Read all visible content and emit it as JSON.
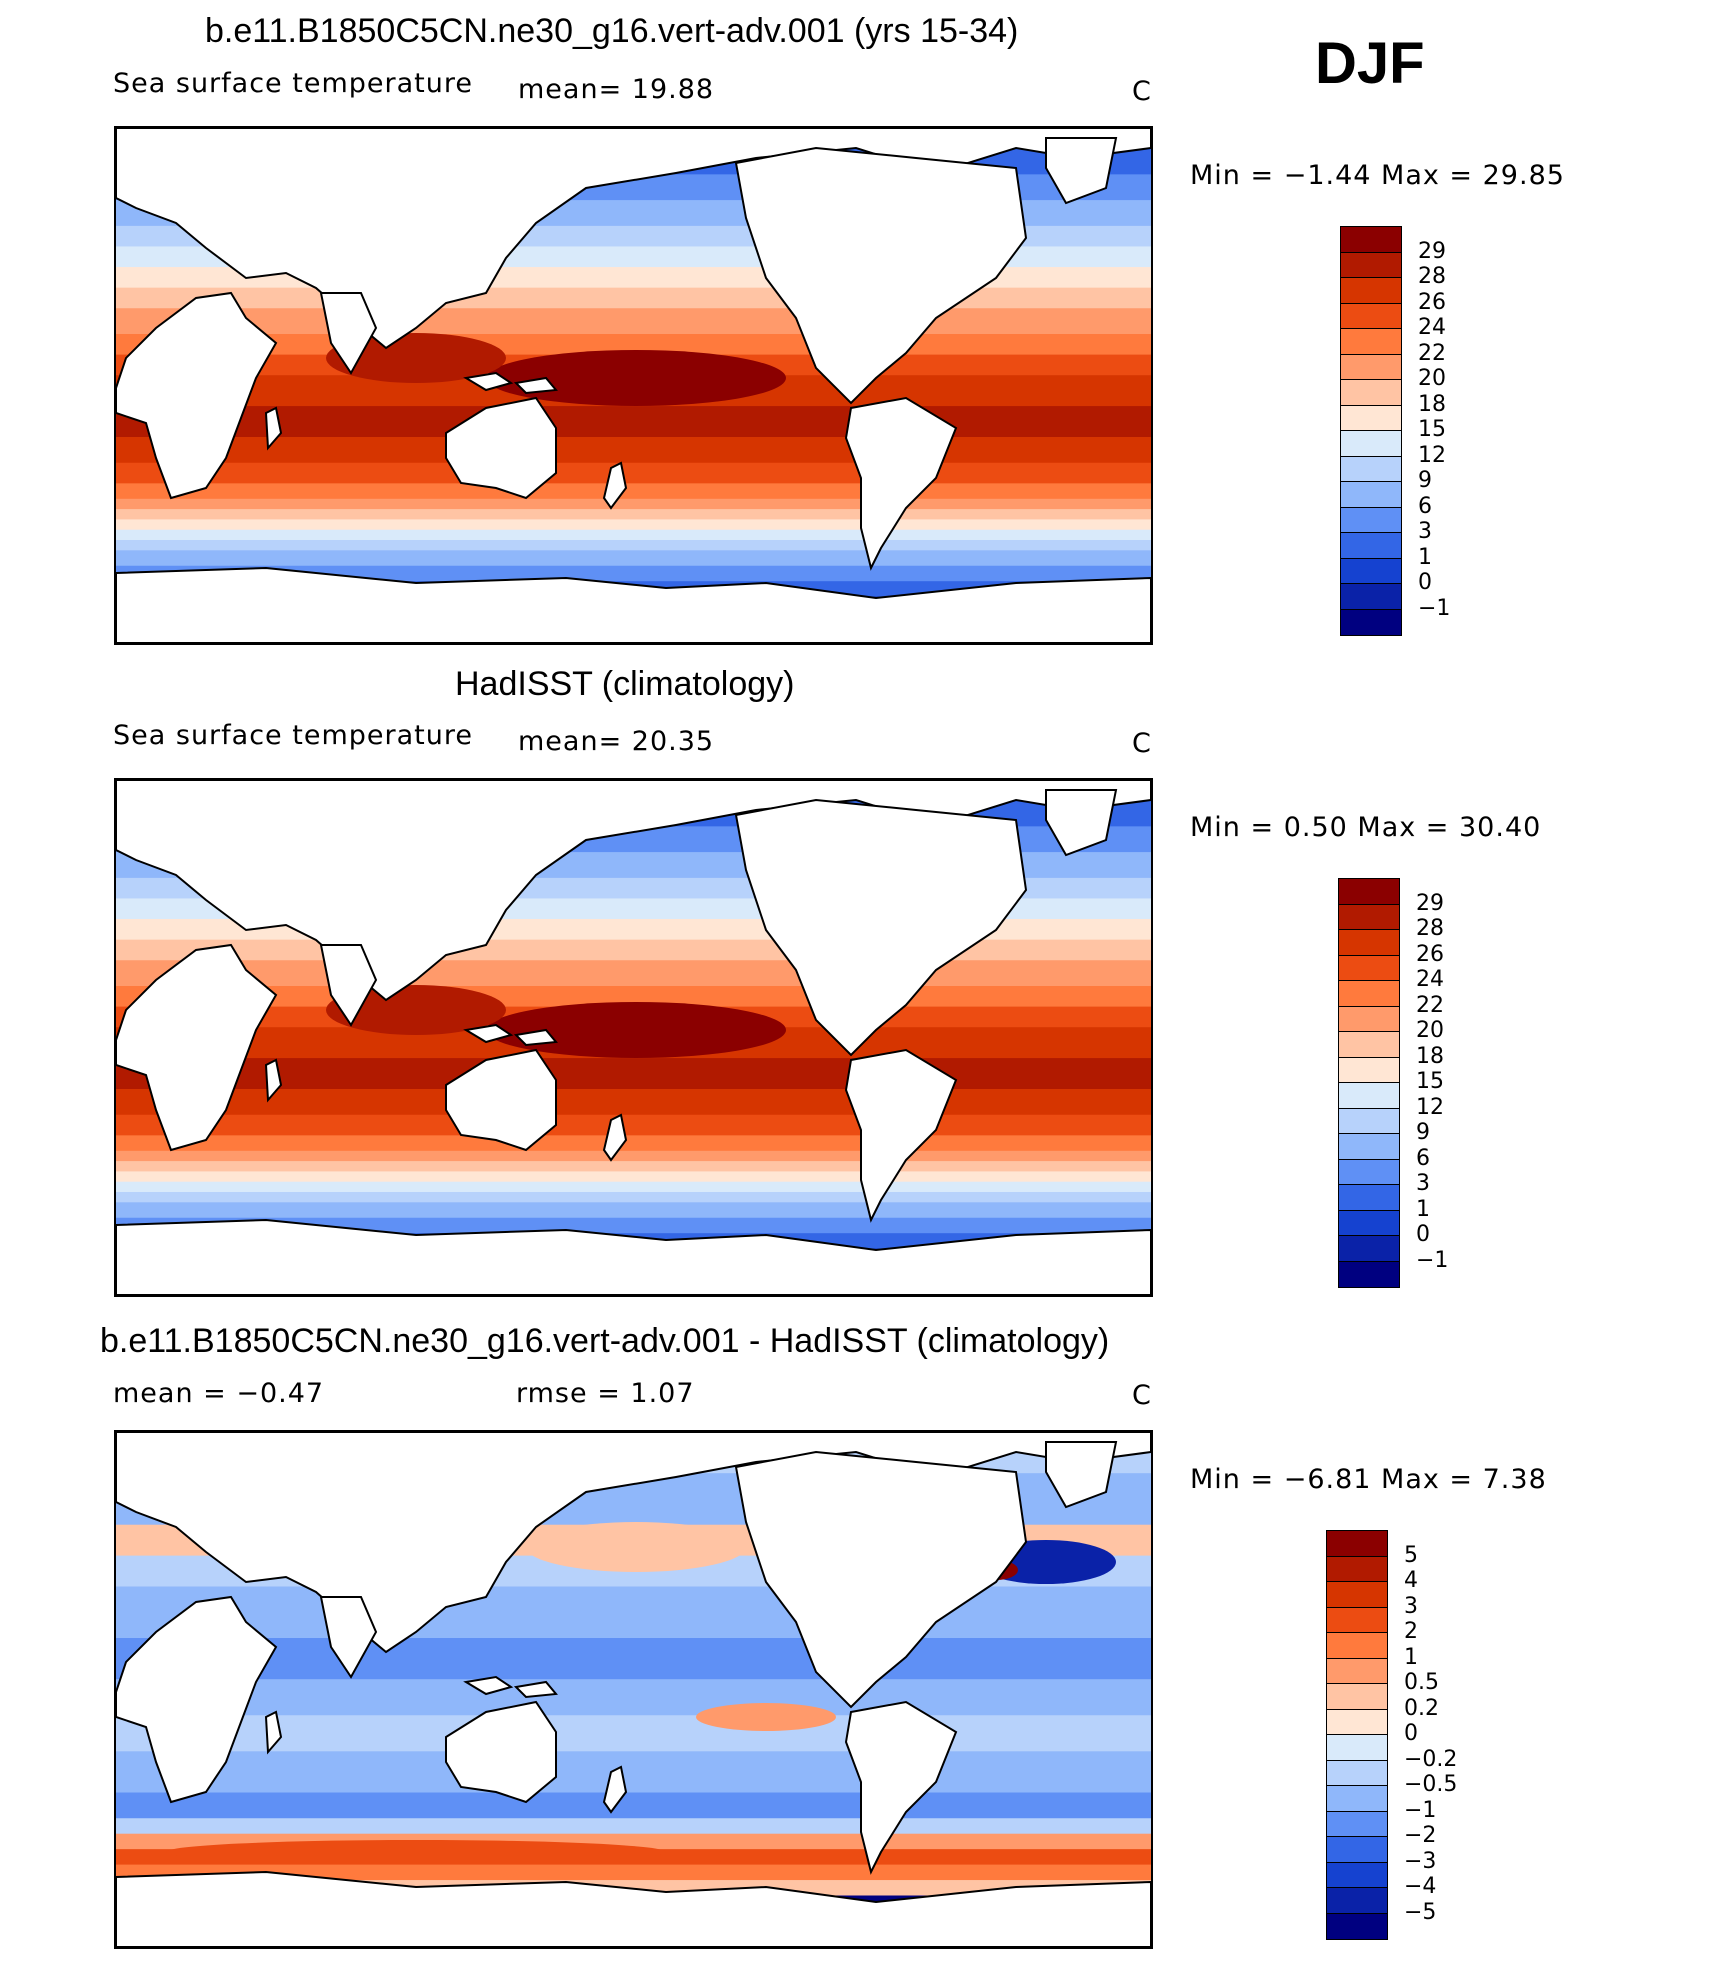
{
  "season": "DJF",
  "panels": [
    {
      "title": "b.e11.B1850C5CN.ne30_g16.vert-adv.001 (yrs 15-34)",
      "left_label": "Sea surface temperature",
      "stat1": "mean=   19.88",
      "stat2": "",
      "units": "C",
      "minmax": "Min  =   −1.44  Max  =    29.85",
      "kind": "abs",
      "levels": [
        "29",
        "28",
        "26",
        "24",
        "22",
        "20",
        "18",
        "15",
        "12",
        "9",
        "6",
        "3",
        "1",
        "0",
        "−1"
      ],
      "colors": [
        "#8b0000",
        "#b11a00",
        "#d63500",
        "#ec4c12",
        "#ff7a3d",
        "#ff9a6b",
        "#ffc4a4",
        "#ffe6d4",
        "#d9eafa",
        "#b7d2fb",
        "#8fb7fa",
        "#5f90f5",
        "#3366e6",
        "#1542d0",
        "#0a22a8",
        "#000080"
      ]
    },
    {
      "title": "HadISST (climatology)",
      "left_label": "Sea surface temperature",
      "stat1": "mean=   20.35",
      "stat2": "",
      "units": "C",
      "minmax": "Min  =     0.50  Max  =    30.40",
      "kind": "abs",
      "levels": [
        "29",
        "28",
        "26",
        "24",
        "22",
        "20",
        "18",
        "15",
        "12",
        "9",
        "6",
        "3",
        "1",
        "0",
        "−1"
      ],
      "colors": [
        "#8b0000",
        "#b11a00",
        "#d63500",
        "#ec4c12",
        "#ff7a3d",
        "#ff9a6b",
        "#ffc4a4",
        "#ffe6d4",
        "#d9eafa",
        "#b7d2fb",
        "#8fb7fa",
        "#5f90f5",
        "#3366e6",
        "#1542d0",
        "#0a22a8",
        "#000080"
      ]
    },
    {
      "title": "b.e11.B1850C5CN.ne30_g16.vert-adv.001 - HadISST (climatology)",
      "left_label": "mean  =   −0.47",
      "stat1": "rmse  =    1.07",
      "stat2": "",
      "units": "C",
      "minmax": "Min  =   −6.81  Max  =     7.38",
      "kind": "diff",
      "levels": [
        "5",
        "4",
        "3",
        "2",
        "1",
        "0.5",
        "0.2",
        "0",
        "−0.2",
        "−0.5",
        "−1",
        "−2",
        "−3",
        "−4",
        "−5"
      ],
      "colors": [
        "#8b0000",
        "#b11a00",
        "#d63500",
        "#ec4c12",
        "#ff7a3d",
        "#ff9a6b",
        "#ffc4a4",
        "#ffe6d4",
        "#d9eafa",
        "#b7d2fb",
        "#8fb7fa",
        "#5f90f5",
        "#3366e6",
        "#1542d0",
        "#0a22a8",
        "#000080"
      ]
    }
  ]
}
